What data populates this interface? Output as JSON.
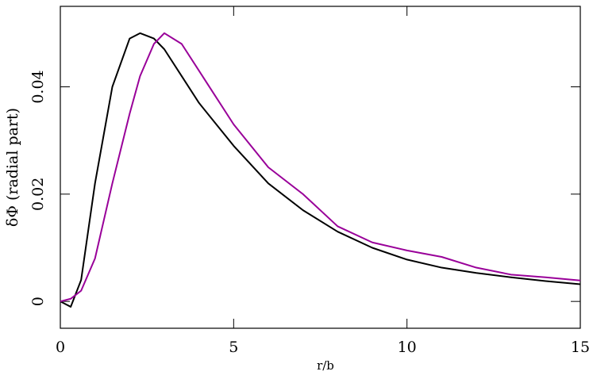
{
  "chart_data": {
    "type": "line",
    "xlabel": "r/b",
    "ylabel": "δΦ (radial part)",
    "x": [
      0,
      0.3,
      0.6,
      1,
      1.5,
      2,
      2.3,
      2.7,
      3,
      3.5,
      4,
      4.5,
      5,
      6,
      7,
      8,
      9,
      10,
      11,
      12,
      13,
      14,
      15
    ],
    "series": [
      {
        "color": "#000000",
        "values": [
          0,
          -0.001,
          0.004,
          0.022,
          0.04,
          0.049,
          0.05,
          0.049,
          0.047,
          0.042,
          0.037,
          0.033,
          0.029,
          0.022,
          0.017,
          0.013,
          0.01,
          0.0078,
          0.0063,
          0.0053,
          0.0045,
          0.0038,
          0.0032
        ]
      },
      {
        "color": "#990099",
        "values": [
          0,
          0.0005,
          0.002,
          0.008,
          0.022,
          0.035,
          0.042,
          0.048,
          0.05,
          0.048,
          0.043,
          0.038,
          0.033,
          0.025,
          0.02,
          0.014,
          0.011,
          0.0095,
          0.0083,
          0.0063,
          0.005,
          0.0045,
          0.0039
        ]
      }
    ],
    "xlim": [
      0,
      15
    ],
    "xticks": [
      0,
      5,
      10,
      15
    ],
    "ylim": [
      -0.005,
      0.055
    ],
    "yticks": [
      0,
      0.02,
      0.04
    ]
  }
}
